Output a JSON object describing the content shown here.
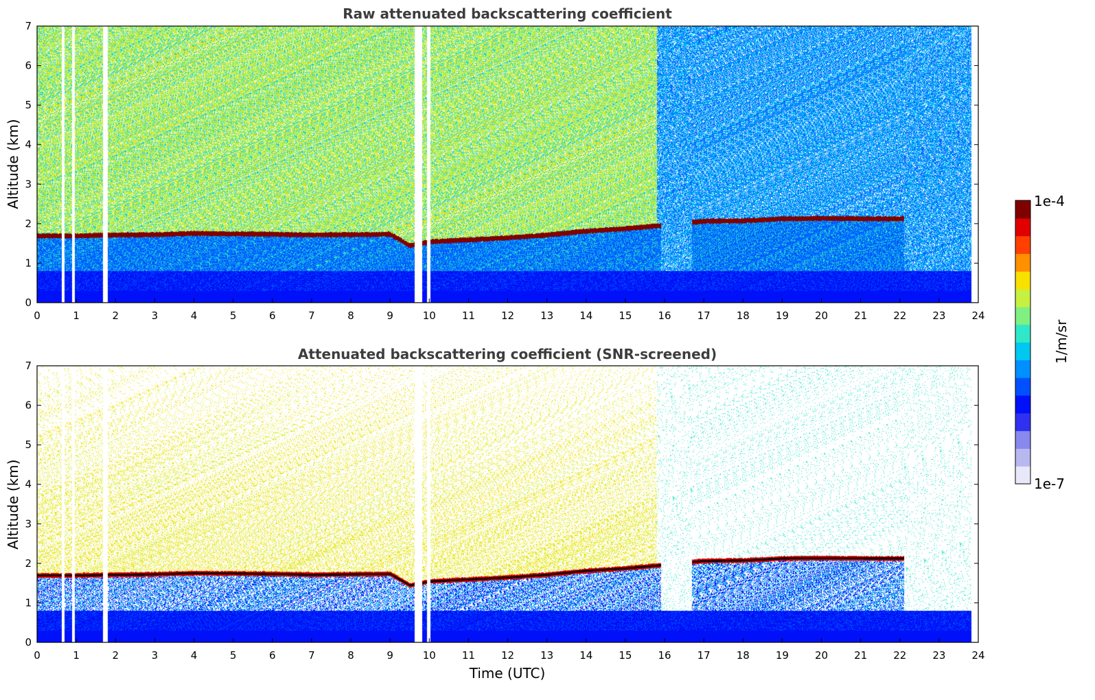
{
  "chart_data": [
    {
      "type": "heatmap",
      "title": "Raw attenuated backscattering coefficient",
      "xlabel": "",
      "ylabel": "Altitude (km)",
      "xlim": [
        0,
        24
      ],
      "ylim": [
        0,
        7
      ],
      "xticks": [
        "0",
        "1",
        "2",
        "3",
        "4",
        "5",
        "6",
        "7",
        "8",
        "9",
        "10",
        "11",
        "12",
        "13",
        "14",
        "15",
        "16",
        "17",
        "18",
        "19",
        "20",
        "21",
        "22",
        "23",
        "24"
      ],
      "yticks": [
        "0",
        "1",
        "2",
        "3",
        "4",
        "5",
        "6",
        "7"
      ],
      "layer_height_km": [
        {
          "t": 0.0,
          "z": 1.7
        },
        {
          "t": 1.0,
          "z": 1.7
        },
        {
          "t": 2.0,
          "z": 1.72
        },
        {
          "t": 3.0,
          "z": 1.73
        },
        {
          "t": 4.0,
          "z": 1.76
        },
        {
          "t": 5.0,
          "z": 1.75
        },
        {
          "t": 6.0,
          "z": 1.74
        },
        {
          "t": 7.0,
          "z": 1.72
        },
        {
          "t": 8.0,
          "z": 1.73
        },
        {
          "t": 9.0,
          "z": 1.74
        },
        {
          "t": 9.5,
          "z": 1.45
        },
        {
          "t": 10.0,
          "z": 1.55
        },
        {
          "t": 11.0,
          "z": 1.6
        },
        {
          "t": 12.0,
          "z": 1.65
        },
        {
          "t": 13.0,
          "z": 1.72
        },
        {
          "t": 14.0,
          "z": 1.82
        },
        {
          "t": 15.0,
          "z": 1.88
        },
        {
          "t": 15.8,
          "z": 1.95
        },
        {
          "t": 17.0,
          "z": 2.07
        },
        {
          "t": 18.0,
          "z": 2.08
        },
        {
          "t": 19.0,
          "z": 2.13
        },
        {
          "t": 20.0,
          "z": 2.14
        },
        {
          "t": 21.3,
          "z": 2.13
        },
        {
          "t": 22.1,
          "z": 2.13
        }
      ],
      "data_gaps_utc": [
        [
          0.62,
          0.7
        ],
        [
          0.88,
          0.96
        ],
        [
          1.68,
          1.8
        ],
        [
          9.62,
          9.82
        ],
        [
          9.94,
          10.02
        ]
      ]
    },
    {
      "type": "heatmap",
      "title": "Attenuated backscattering coefficient (SNR-screened)",
      "xlabel": "Time (UTC)",
      "ylabel": "Altitude (km)",
      "xlim": [
        0,
        24
      ],
      "ylim": [
        0,
        7
      ],
      "xticks": [
        "0",
        "1",
        "2",
        "3",
        "4",
        "5",
        "6",
        "7",
        "8",
        "9",
        "10",
        "11",
        "12",
        "13",
        "14",
        "15",
        "16",
        "17",
        "18",
        "19",
        "20",
        "21",
        "22",
        "23",
        "24"
      ],
      "yticks": [
        "0",
        "1",
        "2",
        "3",
        "4",
        "5",
        "6",
        "7"
      ]
    }
  ],
  "colorbar": {
    "label": "1/m/sr",
    "max_label": "1e-4",
    "min_label": "1e-7",
    "colors": [
      "#e8e8f8",
      "#b8b8f0",
      "#8888ee",
      "#3030f0",
      "#0010f8",
      "#0050ff",
      "#0090ff",
      "#00c8f0",
      "#30e8c8",
      "#80f080",
      "#c8f040",
      "#f8e000",
      "#ff9000",
      "#ff4000",
      "#e00000",
      "#800000"
    ]
  }
}
